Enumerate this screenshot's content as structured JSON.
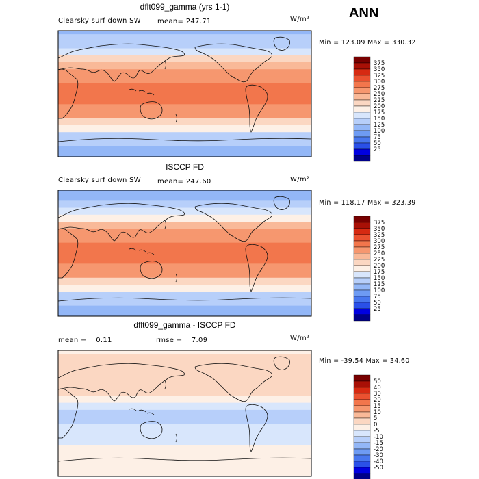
{
  "season": "ANN",
  "palettes": {
    "absolute": [
      "#000088",
      "#0000e0",
      "#2a50e8",
      "#4877ee",
      "#6e9bf3",
      "#93b7f7",
      "#b7cffa",
      "#d8e6fc",
      "#fdf0e6",
      "#fbd7c2",
      "#f9b998",
      "#f6976f",
      "#f2764c",
      "#ea5130",
      "#d62a12",
      "#a81006",
      "#780000"
    ],
    "difference": [
      "#000088",
      "#0000e0",
      "#2a50e8",
      "#4877ee",
      "#6e9bf3",
      "#93b7f7",
      "#b7cffa",
      "#d8e6fc",
      "#fdf0e6",
      "#fbd7c2",
      "#f9b998",
      "#f6976f",
      "#f2764c",
      "#ea5130",
      "#d62a12",
      "#a81006",
      "#780000"
    ]
  },
  "panels": [
    {
      "id": "model",
      "title": "dflt099_gamma (yrs 1-1)",
      "variable": "Clearsky surf down SW",
      "mean_label": "mean=",
      "mean_value": "247.71",
      "units": "W/m²",
      "min_label": "Min =",
      "min_value": "123.09",
      "max_label": "Max =",
      "max_value": "330.32"
    },
    {
      "id": "obs",
      "title": "ISCCP FD",
      "variable": "Clearsky surf down SW",
      "mean_label": "mean=",
      "mean_value": "247.60",
      "units": "W/m²",
      "min_label": "Min =",
      "min_value": "118.17",
      "max_label": "Max =",
      "max_value": "323.39"
    },
    {
      "id": "diff",
      "title": "dflt099_gamma - ISCCP FD",
      "mean_label": "mean =",
      "mean_value": "0.11",
      "rmse_label": "rmse =",
      "rmse_value": "7.09",
      "units": "W/m²",
      "min_label": "Min =",
      "min_value": "-39.54",
      "max_label": "Max =",
      "max_value": "34.60"
    }
  ],
  "chart_data": [
    {
      "type": "heatmap",
      "title": "dflt099_gamma (yrs 1-1)",
      "variable": "Clearsky surf down SW",
      "units": "W/m²",
      "mean": 247.71,
      "min": 123.09,
      "max": 330.32,
      "colorbar_levels": [
        375,
        350,
        325,
        300,
        275,
        250,
        225,
        200,
        175,
        150,
        125,
        100,
        75,
        50,
        25
      ],
      "zonal_profile": {
        "lat": [
          90,
          80,
          70,
          60,
          50,
          40,
          30,
          20,
          10,
          0,
          -10,
          -20,
          -30,
          -40,
          -50,
          -60,
          -70,
          -80,
          -90
        ],
        "value": [
          140,
          155,
          170,
          195,
          230,
          265,
          290,
          300,
          305,
          305,
          305,
          300,
          285,
          250,
          210,
          175,
          165,
          150,
          140
        ]
      }
    },
    {
      "type": "heatmap",
      "title": "ISCCP FD",
      "variable": "Clearsky surf down SW",
      "units": "W/m²",
      "mean": 247.6,
      "min": 118.17,
      "max": 323.39,
      "colorbar_levels": [
        375,
        350,
        325,
        300,
        275,
        250,
        225,
        200,
        175,
        150,
        125,
        100,
        75,
        50,
        25
      ],
      "zonal_profile": {
        "lat": [
          90,
          80,
          70,
          60,
          50,
          40,
          30,
          20,
          10,
          0,
          -10,
          -20,
          -30,
          -40,
          -50,
          -60,
          -70,
          -80,
          -90
        ],
        "value": [
          130,
          145,
          165,
          190,
          225,
          260,
          285,
          300,
          310,
          312,
          308,
          300,
          285,
          250,
          210,
          170,
          155,
          140,
          130
        ]
      }
    },
    {
      "type": "heatmap",
      "title": "dflt099_gamma - ISCCP FD",
      "units": "W/m²",
      "mean": 0.11,
      "rmse": 7.09,
      "min": -39.54,
      "max": 34.6,
      "colorbar_levels": [
        50,
        40,
        30,
        20,
        15,
        10,
        5,
        0,
        -5,
        -10,
        -15,
        -20,
        -30,
        -40,
        -50
      ],
      "zonal_profile": {
        "lat": [
          90,
          80,
          70,
          60,
          50,
          40,
          30,
          20,
          10,
          0,
          -10,
          -20,
          -30,
          -40,
          -50,
          -60,
          -70,
          -80,
          -90
        ],
        "value": [
          5,
          8,
          10,
          8,
          6,
          8,
          8,
          2,
          -3,
          -6,
          -5,
          -4,
          -3,
          -2,
          1,
          3,
          4,
          3,
          3
        ]
      }
    }
  ]
}
